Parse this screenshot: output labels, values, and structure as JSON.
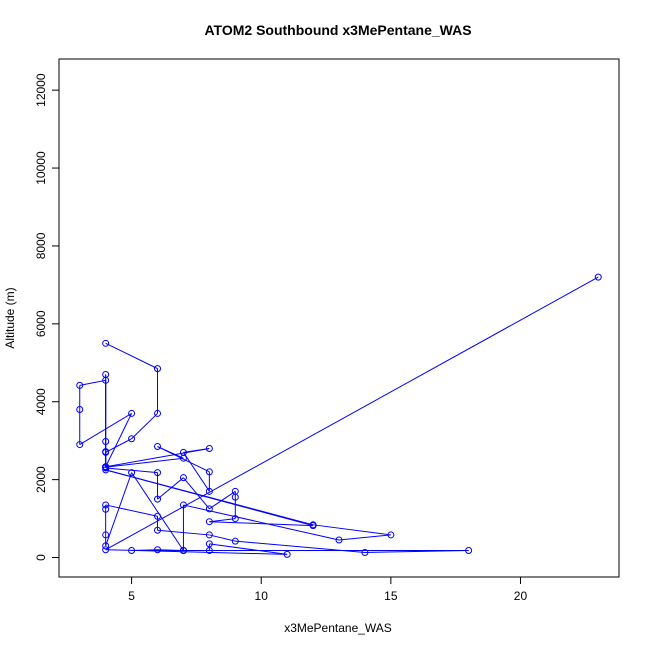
{
  "chart_data": {
    "type": "line",
    "title": "ATOM2 Southbound x3MePentane_WAS",
    "xlabel": "x3MePentane_WAS",
    "ylabel": "Altitude (m)",
    "xlim": [
      2.2,
      23.8
    ],
    "ylim": [
      -500,
      12800
    ],
    "xticks": [
      5,
      10,
      15,
      20
    ],
    "yticks": [
      0,
      2000,
      4000,
      6000,
      8000,
      10000,
      12000
    ],
    "markers": "open-circle",
    "color": "#0000ff",
    "grid": false,
    "x": [
      4,
      6,
      6,
      5,
      4,
      4,
      3,
      3,
      3,
      5,
      4,
      4,
      4,
      4,
      8,
      7,
      8,
      8,
      6,
      7,
      4,
      4,
      4,
      6,
      6,
      7,
      8,
      9,
      9,
      9,
      8,
      12,
      4,
      12,
      15,
      13,
      7,
      7,
      18,
      14,
      9,
      8,
      6,
      6,
      4,
      4,
      4,
      4,
      5,
      7,
      5,
      6,
      7,
      8,
      8,
      11,
      4,
      23
    ],
    "y": [
      5500,
      4850,
      3700,
      3050,
      2700,
      4550,
      4420,
      3800,
      2900,
      3700,
      2330,
      2980,
      4700,
      2330,
      2800,
      2700,
      1700,
      2200,
      2850,
      2550,
      2320,
      2720,
      2300,
      2180,
      1500,
      2050,
      1250,
      1700,
      1550,
      1000,
      920,
      820,
      2250,
      840,
      580,
      450,
      1350,
      180,
      180,
      130,
      420,
      580,
      700,
      1060,
      1350,
      1240,
      580,
      300,
      2180,
      180,
      180,
      200,
      180,
      180,
      350,
      80,
      200,
      7200
    ]
  }
}
